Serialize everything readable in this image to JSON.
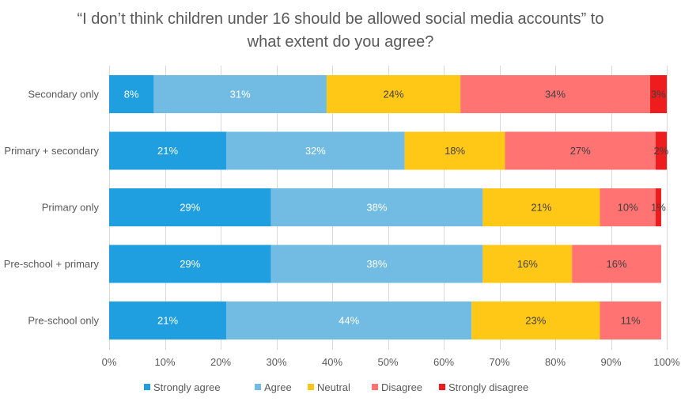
{
  "chart_data": {
    "type": "bar",
    "orientation": "horizontal",
    "stacked": true,
    "title_lines": [
      "“I don’t think children under 16 should be allowed social media accounts” to",
      "what extent do you agree?"
    ],
    "categories": [
      "Secondary only",
      "Primary + secondary",
      "Primary only",
      "Pre-school + primary",
      "Pre-school only"
    ],
    "series": [
      {
        "name": "Strongly agree",
        "color": "#1F9FDF",
        "values": [
          8,
          21,
          29,
          29,
          21
        ],
        "labels": [
          "8%",
          "21%",
          "29%",
          "29%",
          "21%"
        ]
      },
      {
        "name": "Agree",
        "color": "#72BCE3",
        "values": [
          31,
          32,
          38,
          38,
          44
        ],
        "labels": [
          "31%",
          "32%",
          "38%",
          "38%",
          "44%"
        ]
      },
      {
        "name": "Neutral",
        "color": "#FFC817",
        "values": [
          24,
          18,
          21,
          16,
          23
        ],
        "labels": [
          "24%",
          "18%",
          "21%",
          "16%",
          "23%"
        ]
      },
      {
        "name": "Disagree",
        "color": "#FF7373",
        "values": [
          34,
          27,
          10,
          16,
          11
        ],
        "labels": [
          "34%",
          "27%",
          "10%",
          "16%",
          "11%"
        ]
      },
      {
        "name": "Strongly disagree",
        "color": "#EE1C1C",
        "values": [
          3,
          2,
          1,
          0,
          0
        ],
        "labels": [
          "3%",
          "2%",
          "1%",
          "",
          ""
        ]
      }
    ],
    "xlim": [
      0,
      100
    ],
    "x_ticks": [
      "0%",
      "10%",
      "20%",
      "30%",
      "40%",
      "50%",
      "60%",
      "70%",
      "80%",
      "90%",
      "100%"
    ],
    "grid": "vertical",
    "legend": "bottom"
  }
}
